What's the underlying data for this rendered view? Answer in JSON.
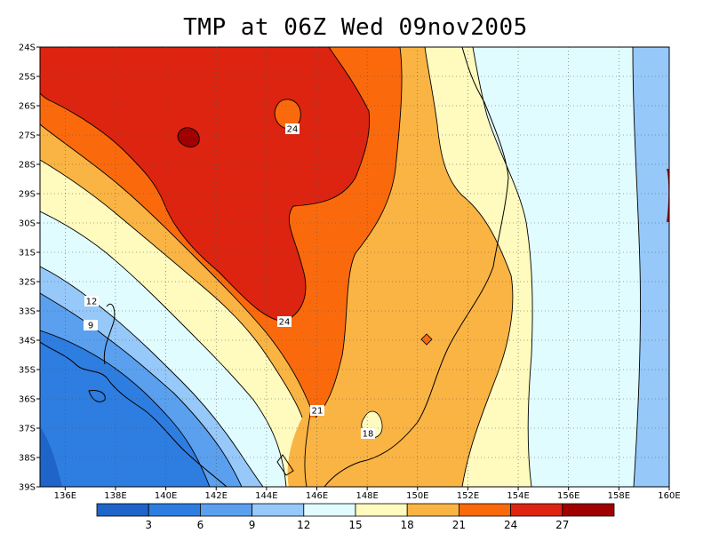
{
  "title": "TMP at 06Z Wed 09nov2005",
  "map": {
    "lat_ticks": [
      "24S",
      "25S",
      "26S",
      "27S",
      "28S",
      "29S",
      "30S",
      "31S",
      "32S",
      "33S",
      "34S",
      "35S",
      "36S",
      "37S",
      "38S",
      "39S"
    ],
    "lon_ticks": [
      "136E",
      "138E",
      "140E",
      "142E",
      "144E",
      "146E",
      "148E",
      "150E",
      "152E",
      "154E",
      "156E",
      "158E",
      "160E"
    ],
    "contour_labels": [
      "24",
      "24",
      "21",
      "18",
      "12",
      "9"
    ]
  },
  "colorbar": {
    "labels": [
      "3",
      "6",
      "9",
      "12",
      "15",
      "18",
      "21",
      "24",
      "27"
    ],
    "colors": [
      "#1f64c8",
      "#2e7de0",
      "#5aa0ee",
      "#96c8fa",
      "#e1fcff",
      "#fffabe",
      "#fab444",
      "#fa6a0c",
      "#dc2410",
      "#a00000"
    ]
  },
  "colors": {
    "darkblue": "#1f64c8",
    "blue": "#2e7de0",
    "midblue": "#5aa0ee",
    "lightblue": "#96c8fa",
    "pale": "#e1fcff",
    "cream": "#fffabe",
    "lightorange": "#fab444",
    "orange": "#fa6a0c",
    "red": "#dc2410",
    "darkred": "#a00000"
  }
}
